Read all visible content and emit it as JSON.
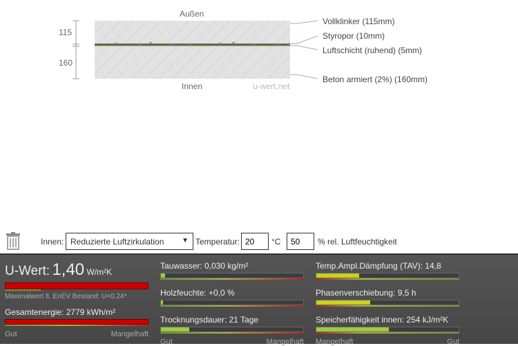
{
  "diagram": {
    "outside_label": "Außen",
    "inside_label": "Innen",
    "watermark": "u-wert.net",
    "dimensions": [
      "115",
      "160"
    ],
    "layers": [
      "Vollklinker (115mm)",
      "Styropor (10mm)",
      "Luftschicht (ruhend) (5mm)",
      "Beton armiert (2%) (160mm)"
    ]
  },
  "toolbar": {
    "trash_icon": "trash-icon",
    "inside_label": "Innen:",
    "inside_value": "Reduzierte Luftzirkulation",
    "dropdown_arrow": "▼",
    "temp_label": "Temperatur:",
    "temp_value": "20",
    "temp_unit": "°C",
    "humidity_value": "50",
    "humidity_label": "% rel. Luftfeuchtigkeit"
  },
  "results": {
    "uwert": {
      "label": "U-Wert:",
      "value": "1,40",
      "unit": "W/m²K",
      "level": 1.0,
      "note": "Maximalwert lt. EnEV Bestand: U<0.24*"
    },
    "energy": {
      "label": "Gesamtenergie: 2779 kWh/m²",
      "level": 1.0
    },
    "col1_scale": [
      "Gut",
      "Mangelhaft"
    ],
    "col2": [
      {
        "label": "Tauwasser: 0,030 kg/m²",
        "level": 0.03
      },
      {
        "label": "Holzfeuchte: +0,0 %",
        "level": 0.005
      },
      {
        "label": "Trocknungsdauer: 21 Tage",
        "level": 0.2
      }
    ],
    "col2_scale": [
      "Gut",
      "Mangelhaft"
    ],
    "col3": [
      {
        "label": "Temp.Ampl.Dämpfung (TAV): 14,8",
        "level": 0.3
      },
      {
        "label": "Phasenverschiebung: 9,5 h",
        "level": 0.38
      },
      {
        "label": "Speicherfähigkeit innen: 254 kJ/m²K",
        "level": 0.51
      }
    ],
    "col3_scale": [
      "Mangelhaft",
      "Gut"
    ]
  },
  "colors": {
    "bad": "#cc0000",
    "warn": "#c8d020",
    "good": "#9ccc40"
  }
}
